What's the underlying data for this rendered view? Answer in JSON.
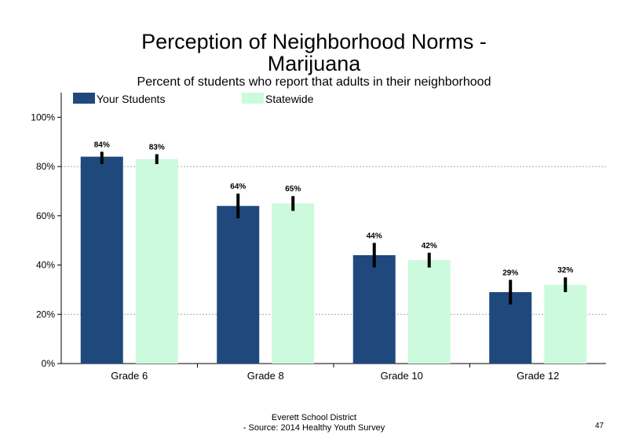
{
  "title_line1": "Perception of Neighborhood Norms -",
  "title_line2": "Marijuana",
  "subtitle": "Percent of students who report that adults in their neighborhood",
  "footer_line1": "Everett School District",
  "footer_line2": "- Source: 2014 Healthy  Youth Survey",
  "page_number": "47",
  "colors": {
    "your_students": "#1f497d",
    "statewide": "#ccfadc",
    "error_bar": "#000000",
    "grid": "#a6a6a6"
  },
  "chart_data": {
    "type": "bar",
    "categories": [
      "Grade 6",
      "Grade 8",
      "Grade 10",
      "Grade 12"
    ],
    "series": [
      {
        "name": "Your Students",
        "values": [
          84,
          64,
          44,
          29
        ],
        "labels": [
          "84%",
          "64%",
          "44%",
          "29%"
        ],
        "error": [
          [
            81,
            86
          ],
          [
            59,
            69
          ],
          [
            39,
            49
          ],
          [
            24,
            34
          ]
        ]
      },
      {
        "name": "Statewide",
        "values": [
          83,
          65,
          42,
          32
        ],
        "labels": [
          "83%",
          "65%",
          "42%",
          "32%"
        ],
        "error": [
          [
            81,
            85
          ],
          [
            62,
            68
          ],
          [
            39,
            45
          ],
          [
            29,
            35
          ]
        ]
      }
    ],
    "ylim": [
      0,
      110
    ],
    "yticks": [
      0,
      20,
      40,
      60,
      80,
      100
    ],
    "ytick_labels": [
      "0%",
      "20%",
      "40%",
      "60%",
      "80%",
      "100%"
    ],
    "gridlines": [
      20,
      80
    ],
    "legend": "top-left"
  }
}
